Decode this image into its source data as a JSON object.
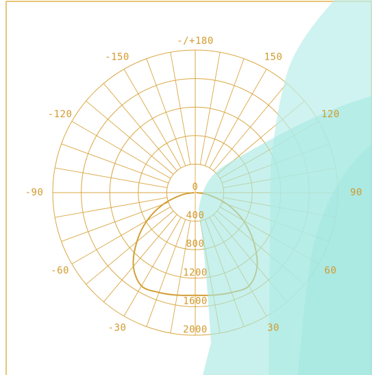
{
  "colors": {
    "grid": "#d9a640",
    "label": "#d19a2e",
    "curve": "#d29f35",
    "frame": "#e2b04c",
    "overlay_light": "#bdeeea",
    "overlay_mid": "#a6e8e2",
    "overlay_dark": "#8fe0da"
  },
  "chart_data": {
    "type": "polar-line",
    "title": "",
    "angle_unit": "degrees",
    "angle_tick_labels": [
      {
        "angle": 180,
        "label": "-/+180"
      },
      {
        "angle": -150,
        "label": "-150"
      },
      {
        "angle": 150,
        "label": "150"
      },
      {
        "angle": -120,
        "label": "-120"
      },
      {
        "angle": 120,
        "label": "120"
      },
      {
        "angle": -90,
        "label": "-90"
      },
      {
        "angle": 90,
        "label": "90"
      },
      {
        "angle": -60,
        "label": "-60"
      },
      {
        "angle": 60,
        "label": "60"
      },
      {
        "angle": -30,
        "label": "-30"
      },
      {
        "angle": 30,
        "label": "30"
      }
    ],
    "radial_tick_labels": [
      "0",
      "400",
      "800",
      "1200",
      "1600",
      "2000"
    ],
    "radial_range": [
      0,
      2000
    ],
    "radial_circles": [
      400,
      800,
      1200,
      1600,
      2000
    ],
    "angular_grid_step_degrees": 10,
    "grid": true,
    "series": [
      {
        "angles": [
          0,
          10,
          20,
          30,
          40,
          50,
          60,
          70,
          80,
          90
        ],
        "values": [
          1440,
          1460,
          1490,
          1510,
          1350,
          1070,
          780,
          480,
          200,
          20
        ]
      }
    ]
  }
}
